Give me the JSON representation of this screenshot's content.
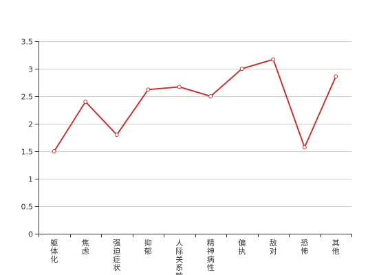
{
  "chart_data": {
    "type": "line",
    "title": "",
    "xlabel": "",
    "ylabel": "",
    "categories": [
      "躯体化",
      "焦虑",
      "强迫症状",
      "抑郁",
      "人际关系敏感",
      "精神病性",
      "偏执",
      "敌对",
      "恐怖",
      "其他"
    ],
    "series": [
      {
        "values": [
          1.5,
          2.4,
          1.8,
          2.62,
          2.67,
          2.5,
          3.0,
          3.17,
          1.57,
          2.86
        ]
      }
    ],
    "ylim": [
      0,
      3.5
    ],
    "yticks": [
      "0",
      "0.5",
      "1",
      "1.5",
      "2",
      "2.5",
      "3",
      "3.5"
    ],
    "ytick_values": [
      0,
      0.5,
      1,
      1.5,
      2,
      2.5,
      3,
      3.5
    ],
    "grid": true,
    "legend": "none",
    "colors": {
      "line": "#c23531",
      "grid": "#cccccc",
      "axis": "#333333",
      "point_fill": "#ffffff"
    }
  }
}
